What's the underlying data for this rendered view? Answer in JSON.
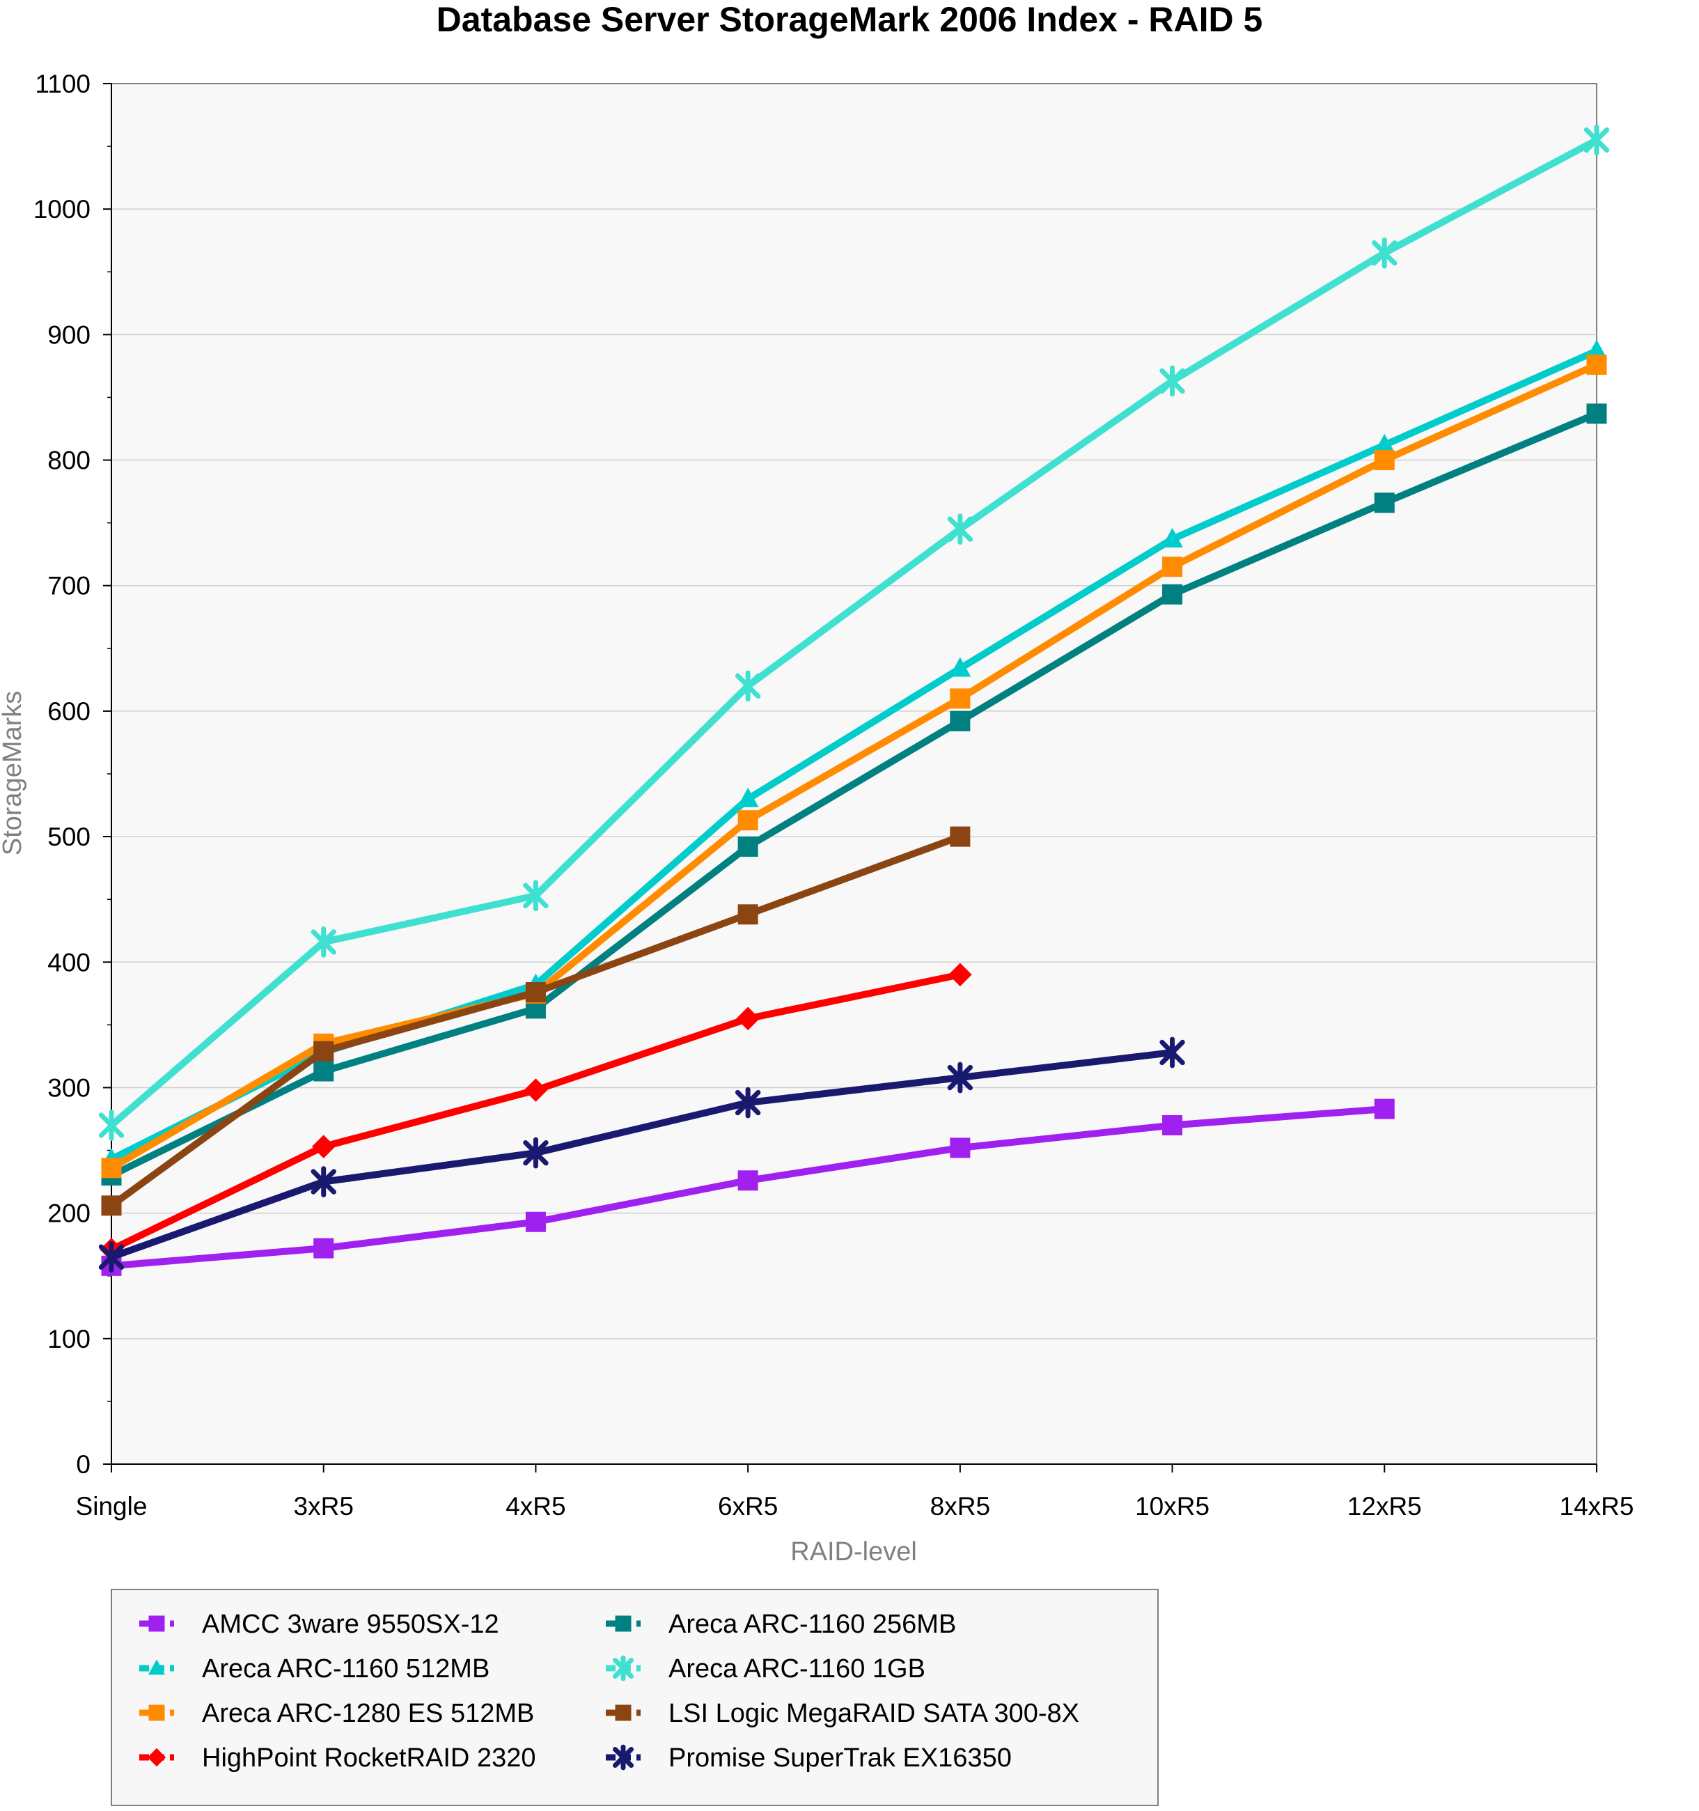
{
  "chart_data": {
    "type": "line",
    "title": "Database Server StorageMark 2006 Index - RAID 5",
    "xlabel": "RAID-level",
    "ylabel": "StorageMarks",
    "categories": [
      "Single",
      "3xR5",
      "4xR5",
      "6xR5",
      "8xR5",
      "10xR5",
      "12xR5",
      "14xR5"
    ],
    "ylim": [
      0,
      1100
    ],
    "yticks": [
      0,
      100,
      200,
      300,
      400,
      500,
      600,
      700,
      800,
      900,
      1000,
      1100
    ],
    "grid": "horizontal",
    "legend_position": "bottom",
    "series": [
      {
        "name": "AMCC 3ware 9550SX-12",
        "color": "#a020f0",
        "marker": "square",
        "values": [
          158,
          172,
          193,
          226,
          252,
          270,
          283,
          null
        ]
      },
      {
        "name": "Areca ARC-1160 256MB",
        "color": "#008080",
        "marker": "square",
        "values": [
          230,
          313,
          363,
          492,
          592,
          693,
          766,
          837
        ]
      },
      {
        "name": "Areca ARC-1160 512MB",
        "color": "#00cccc",
        "marker": "triangle",
        "values": [
          243,
          328,
          382,
          530,
          634,
          737,
          812,
          887
        ]
      },
      {
        "name": "Areca ARC-1160 1GB",
        "color": "#40e0d0",
        "marker": "asterisk",
        "values": [
          270,
          416,
          453,
          620,
          745,
          863,
          965,
          1055
        ]
      },
      {
        "name": "Areca ARC-1280 ES 512MB",
        "color": "#ff8c00",
        "marker": "square",
        "values": [
          236,
          335,
          375,
          513,
          610,
          715,
          800,
          876
        ]
      },
      {
        "name": "LSI Logic MegaRAID SATA 300-8X",
        "color": "#8b4513",
        "marker": "square",
        "values": [
          206,
          329,
          376,
          438,
          500,
          null,
          null,
          null
        ]
      },
      {
        "name": "HighPoint RocketRAID 2320",
        "color": "#ff0000",
        "marker": "diamond",
        "values": [
          171,
          253,
          298,
          355,
          390,
          null,
          null,
          null
        ]
      },
      {
        "name": "Promise SuperTrak EX16350",
        "color": "#191970",
        "marker": "asterisk",
        "values": [
          165,
          225,
          248,
          288,
          308,
          328,
          null,
          null
        ]
      }
    ]
  }
}
